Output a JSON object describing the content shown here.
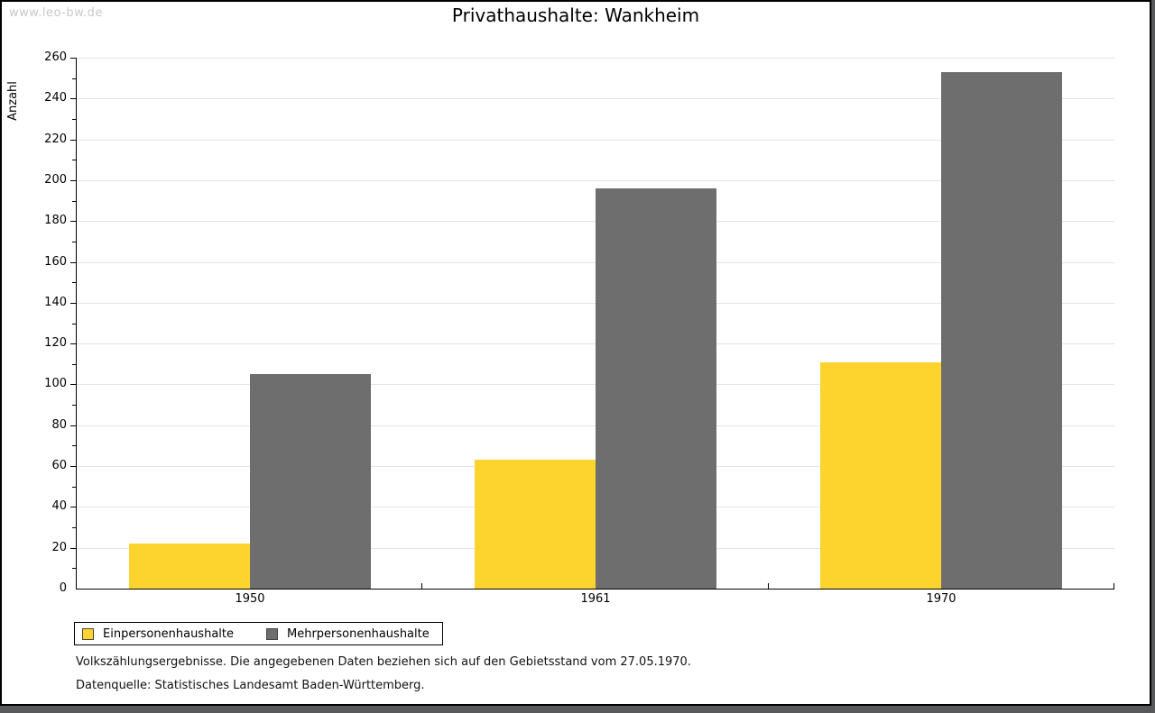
{
  "page": {
    "watermark": "www.leo-bw.de"
  },
  "chart_data": {
    "type": "bar",
    "title": "Privathaushalte: Wankheim",
    "xlabel": "",
    "ylabel": "Anzahl",
    "ylim": [
      0,
      260
    ],
    "y_major_step": 20,
    "y_minor_step": 10,
    "grid": "horizontal-major",
    "legend_position": "bottom-left",
    "categories": [
      "1950",
      "1961",
      "1970"
    ],
    "series": [
      {
        "name": "Einpersonenhaushalte",
        "color": "#fdd32e",
        "values": [
          22,
          63,
          111
        ]
      },
      {
        "name": "Mehrpersonenhaushalte",
        "color": "#6e6e6e",
        "values": [
          105,
          196,
          253
        ]
      }
    ]
  },
  "footer": {
    "line1": "Volkszählungsergebnisse. Die angegebenen Daten beziehen sich auf den Gebietsstand vom 27.05.1970.",
    "line2": "Datenquelle: Statistisches Landesamt Baden-Württemberg."
  },
  "colors": {
    "shadow": "#58595b",
    "gridline": "#e4e4e4",
    "watermark": "#c9c9c9"
  }
}
